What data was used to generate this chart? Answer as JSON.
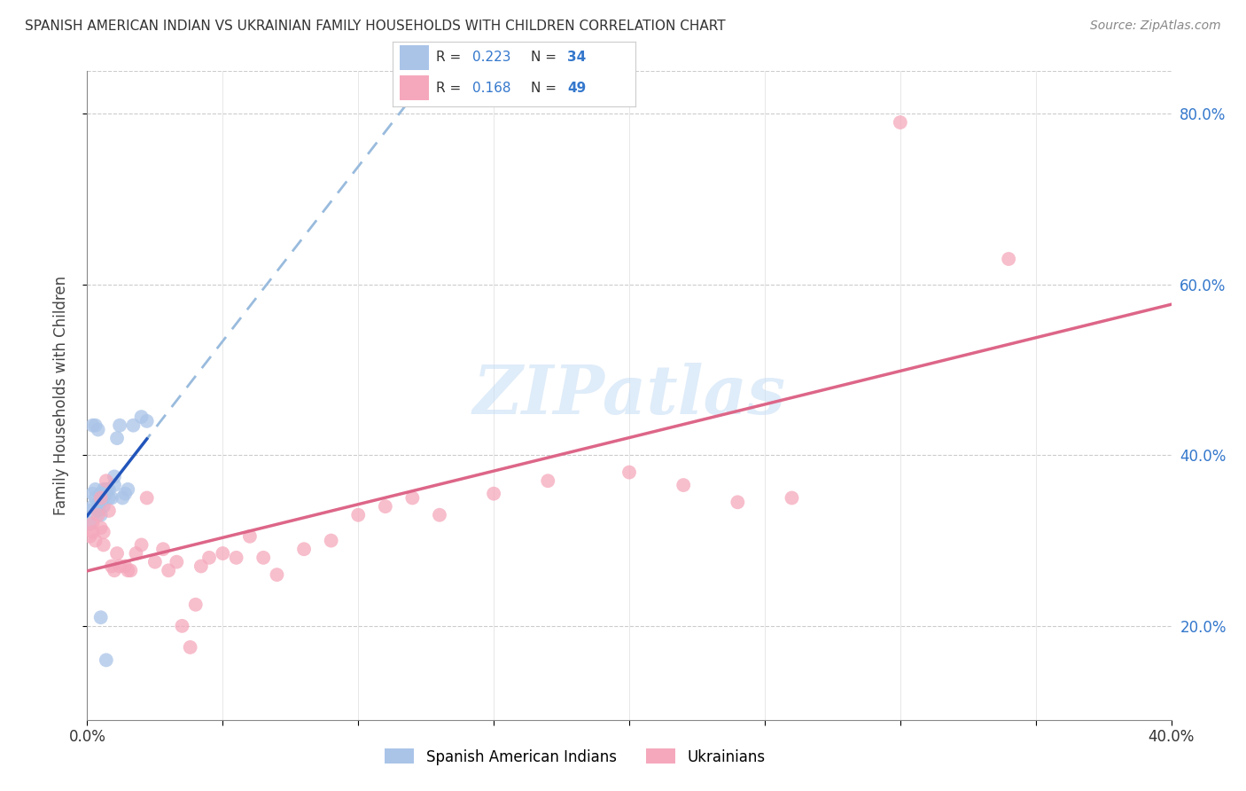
{
  "title": "SPANISH AMERICAN INDIAN VS UKRAINIAN FAMILY HOUSEHOLDS WITH CHILDREN CORRELATION CHART",
  "source": "Source: ZipAtlas.com",
  "ylabel": "Family Households with Children",
  "xmin": 0.0,
  "xmax": 0.4,
  "ymin": 0.09,
  "ymax": 0.85,
  "ytick_vals": [
    0.2,
    0.4,
    0.6,
    0.8
  ],
  "ytick_labels": [
    "20.0%",
    "40.0%",
    "60.0%",
    "80.0%"
  ],
  "xtick_vals": [
    0.0,
    0.05,
    0.1,
    0.15,
    0.2,
    0.25,
    0.3,
    0.35,
    0.4
  ],
  "xtick_labels": [
    "0.0%",
    "",
    "",
    "",
    "",
    "",
    "",
    "",
    "40.0%"
  ],
  "watermark": "ZIPatlas",
  "legend_r1": "0.223",
  "legend_n1": "34",
  "legend_r2": "0.168",
  "legend_n2": "49",
  "color_blue": "#aac4e8",
  "color_pink": "#f5a8bc",
  "line_blue": "#2255bb",
  "line_pink": "#dd6688",
  "line_dashed_color": "#99bbdd",
  "spanish_x": [
    0.001,
    0.001,
    0.002,
    0.002,
    0.003,
    0.003,
    0.004,
    0.004,
    0.005,
    0.005,
    0.005,
    0.006,
    0.006,
    0.006,
    0.007,
    0.007,
    0.008,
    0.008,
    0.009,
    0.01,
    0.01,
    0.011,
    0.012,
    0.013,
    0.014,
    0.015,
    0.017,
    0.02,
    0.022,
    0.002,
    0.003,
    0.004,
    0.005,
    0.007
  ],
  "spanish_y": [
    0.335,
    0.32,
    0.355,
    0.34,
    0.36,
    0.35,
    0.34,
    0.335,
    0.355,
    0.345,
    0.33,
    0.36,
    0.35,
    0.34,
    0.355,
    0.36,
    0.36,
    0.35,
    0.35,
    0.375,
    0.365,
    0.42,
    0.435,
    0.35,
    0.355,
    0.36,
    0.435,
    0.445,
    0.44,
    0.435,
    0.435,
    0.43,
    0.21,
    0.16
  ],
  "ukrainian_x": [
    0.001,
    0.002,
    0.002,
    0.003,
    0.004,
    0.005,
    0.005,
    0.006,
    0.006,
    0.007,
    0.008,
    0.009,
    0.01,
    0.011,
    0.012,
    0.014,
    0.015,
    0.016,
    0.018,
    0.02,
    0.022,
    0.025,
    0.028,
    0.03,
    0.033,
    0.035,
    0.038,
    0.04,
    0.042,
    0.045,
    0.05,
    0.055,
    0.06,
    0.065,
    0.07,
    0.08,
    0.09,
    0.1,
    0.11,
    0.12,
    0.13,
    0.15,
    0.17,
    0.2,
    0.22,
    0.24,
    0.26,
    0.3,
    0.34
  ],
  "ukrainian_y": [
    0.305,
    0.31,
    0.32,
    0.3,
    0.33,
    0.35,
    0.315,
    0.295,
    0.31,
    0.37,
    0.335,
    0.27,
    0.265,
    0.285,
    0.27,
    0.27,
    0.265,
    0.265,
    0.285,
    0.295,
    0.35,
    0.275,
    0.29,
    0.265,
    0.275,
    0.2,
    0.175,
    0.225,
    0.27,
    0.28,
    0.285,
    0.28,
    0.305,
    0.28,
    0.26,
    0.29,
    0.3,
    0.33,
    0.34,
    0.35,
    0.33,
    0.355,
    0.37,
    0.38,
    0.365,
    0.345,
    0.35,
    0.79,
    0.63
  ]
}
